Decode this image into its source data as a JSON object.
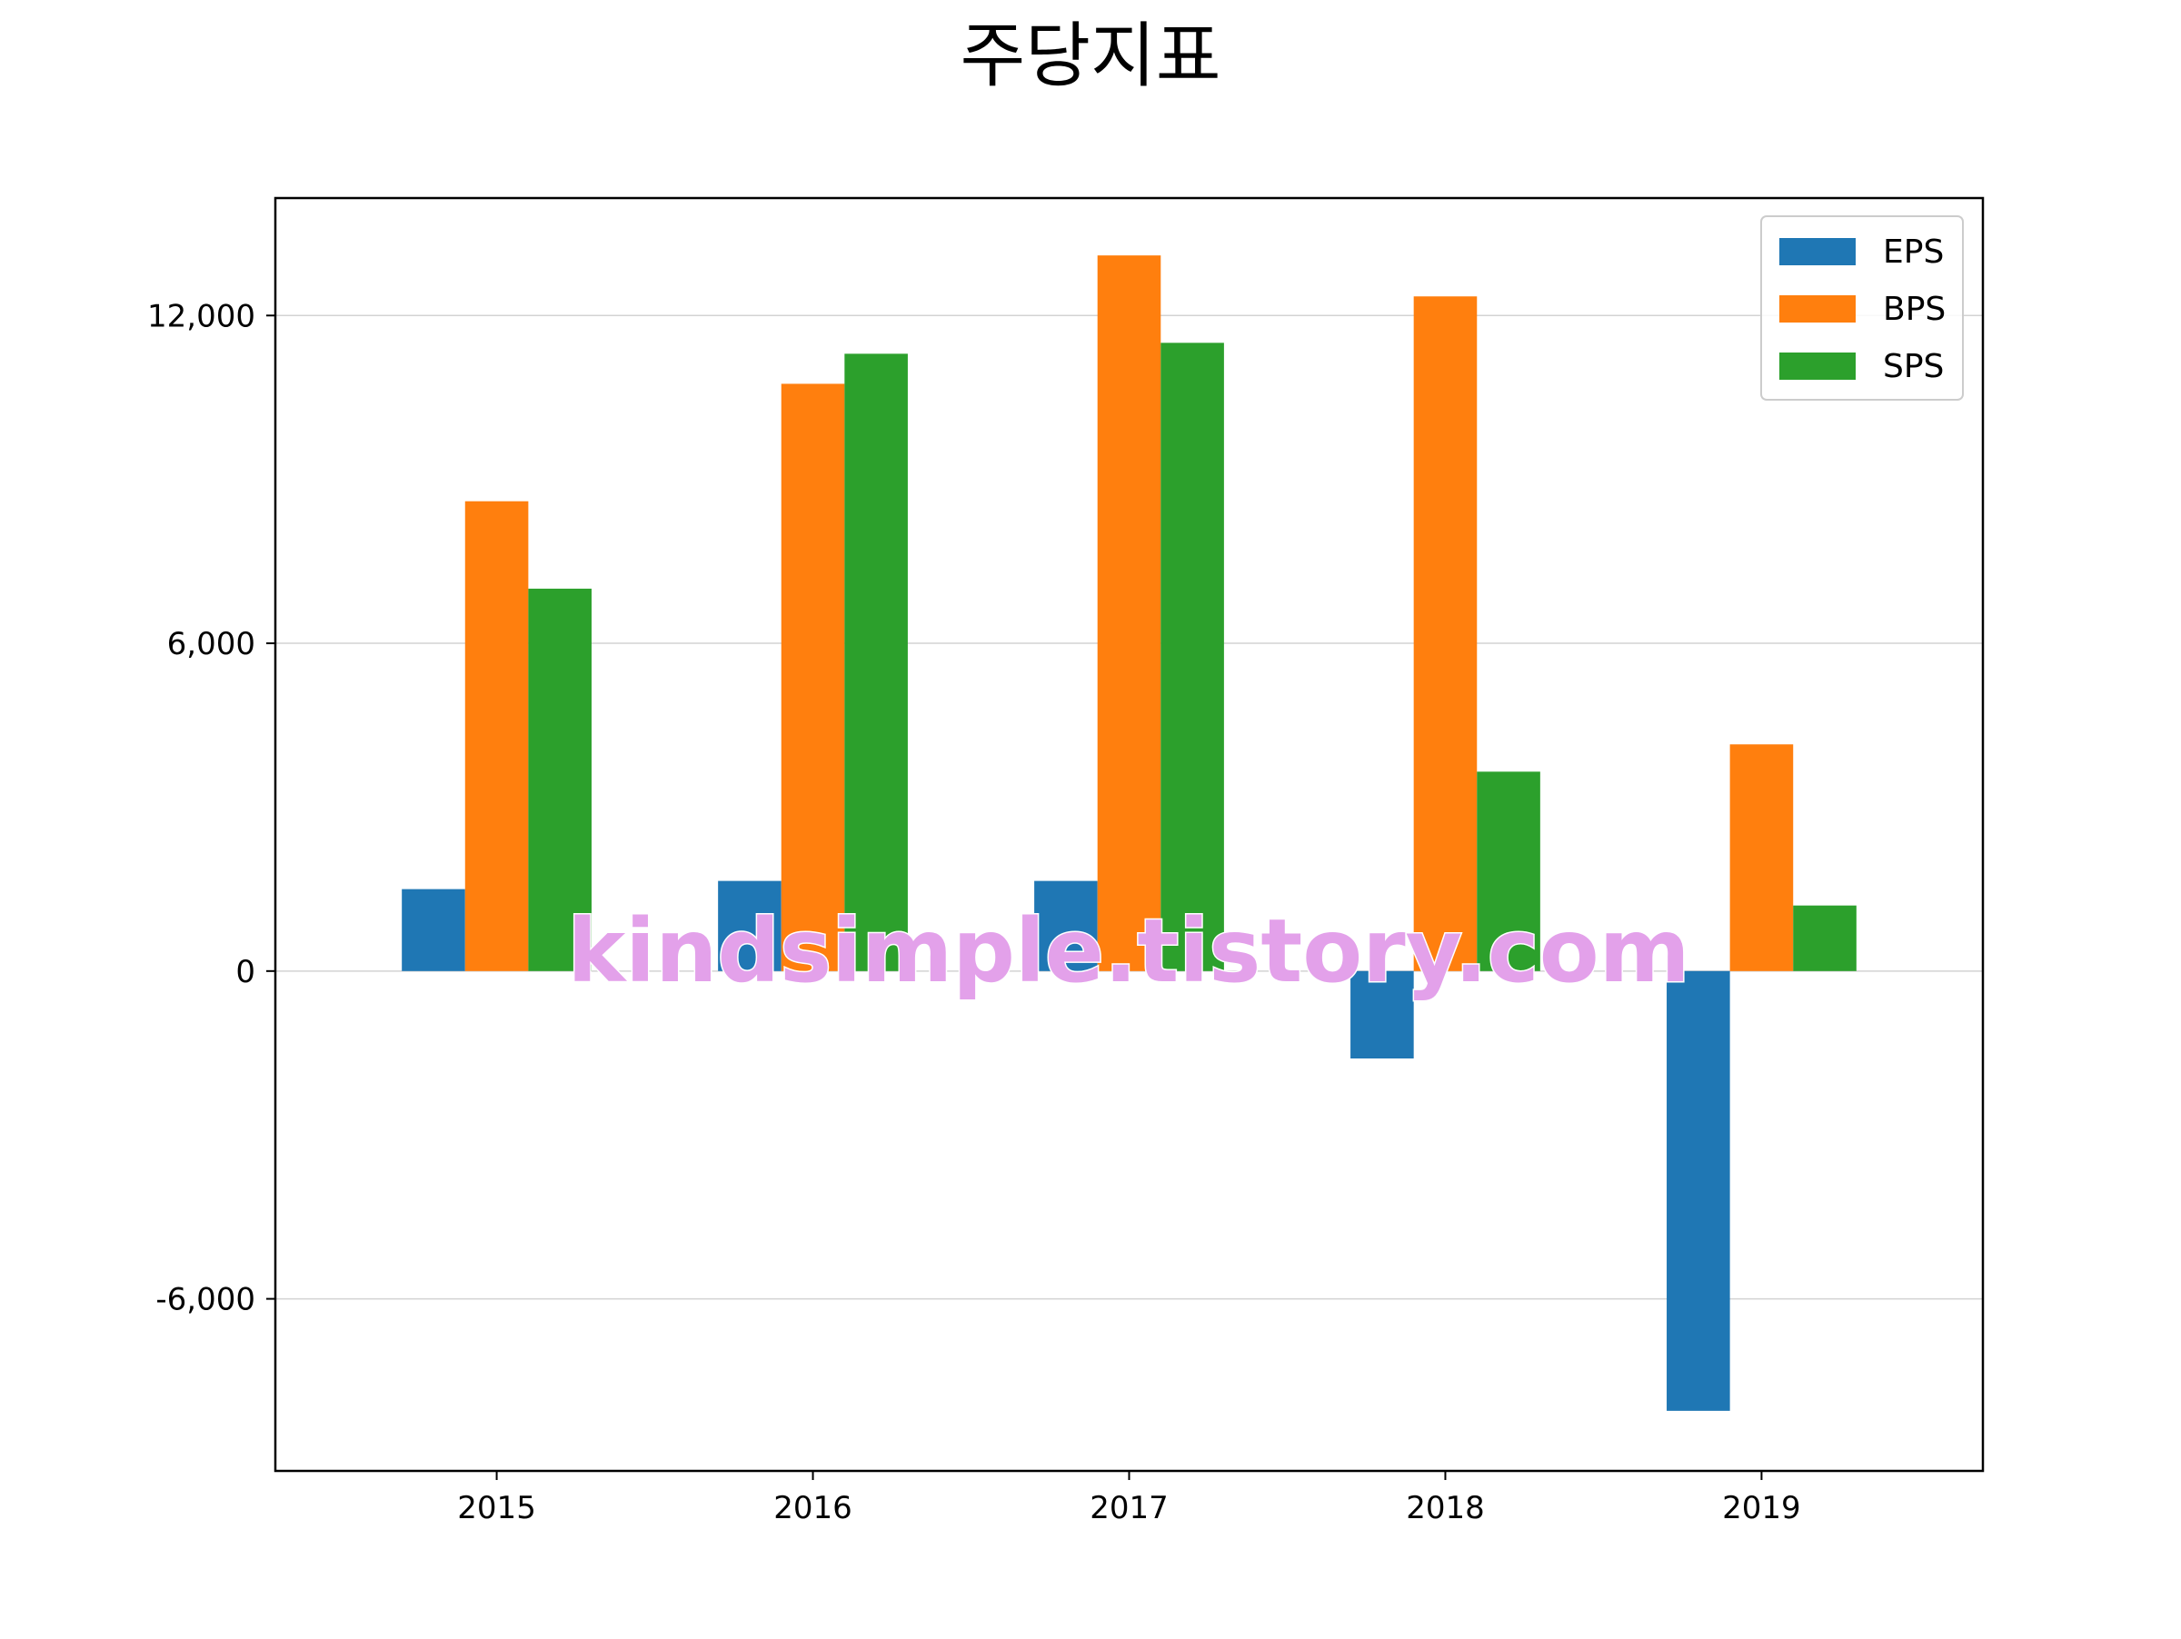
{
  "chart_data": {
    "type": "bar",
    "title": "주당지표",
    "xlabel": "",
    "ylabel": "",
    "categories": [
      "2015",
      "2016",
      "2017",
      "2018",
      "2019"
    ],
    "series": [
      {
        "name": "EPS",
        "values": [
          1500,
          1650,
          1650,
          -1600,
          -8050
        ]
      },
      {
        "name": "BPS",
        "values": [
          8600,
          10750,
          13100,
          12350,
          4150
        ]
      },
      {
        "name": "SPS",
        "values": [
          7000,
          11300,
          11500,
          3650,
          1200
        ]
      }
    ],
    "ylim": [
      -9150,
      14150
    ],
    "yticks": [
      -6000,
      0,
      6000,
      12000
    ],
    "ytick_labels": [
      "-6,000",
      "0",
      "6,000",
      "12,000"
    ],
    "grid": "horizontal",
    "legend": "top-right",
    "colors": [
      "#1f77b4",
      "#ff7f0e",
      "#2ca02c"
    ]
  },
  "watermark": "kindsimple.tistory.com"
}
